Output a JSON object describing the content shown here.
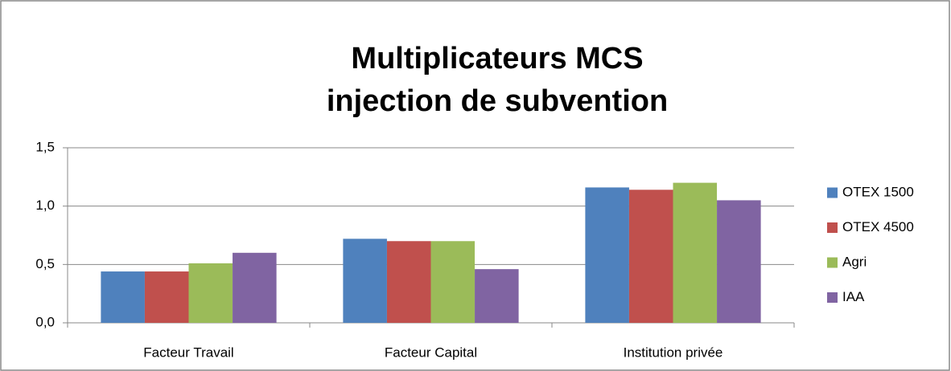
{
  "chart_data": {
    "type": "bar",
    "title": [
      "Multiplicateurs MCS",
      "injection de subvention"
    ],
    "categories": [
      "Facteur Travail",
      "Facteur Capital",
      "Institution privée"
    ],
    "series": [
      {
        "name": "OTEX 1500",
        "color": "#4F81BD",
        "values": [
          0.44,
          0.72,
          1.16
        ]
      },
      {
        "name": "OTEX 4500",
        "color": "#C0504D",
        "values": [
          0.44,
          0.7,
          1.14
        ]
      },
      {
        "name": "Agri",
        "color": "#9BBB59",
        "values": [
          0.51,
          0.7,
          1.2
        ]
      },
      {
        "name": "IAA",
        "color": "#8064A2",
        "values": [
          0.6,
          0.46,
          1.05
        ]
      }
    ],
    "ylim": [
      0,
      1.5
    ],
    "yticks": [
      {
        "value": 0,
        "label": "0,0"
      },
      {
        "value": 0.5,
        "label": "0,5"
      },
      {
        "value": 1,
        "label": "1,0"
      },
      {
        "value": 1.5,
        "label": "1,5"
      }
    ],
    "grid": true,
    "legend": "right"
  }
}
